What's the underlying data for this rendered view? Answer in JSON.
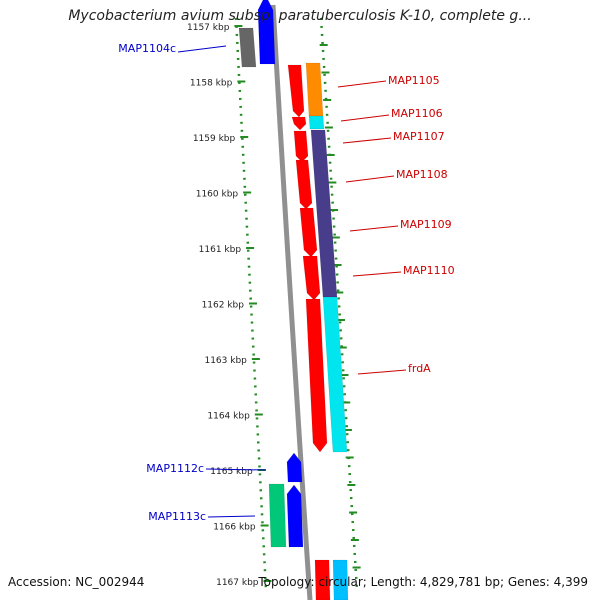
{
  "header": {
    "title": "Mycobacterium avium subsp. paratuberculosis K-10, complete g..."
  },
  "footer": {
    "accession": "Accession: NC_002944",
    "topology": "Topology: circular; Length: 4,829,781 bp; Genes: 4,399"
  },
  "ruler": {
    "ticks": [
      {
        "kbp": 1157,
        "label": "1157 kbp"
      },
      {
        "kbp": 1158,
        "label": "1158 kbp"
      },
      {
        "kbp": 1159,
        "label": "1159 kbp"
      },
      {
        "kbp": 1160,
        "label": "1160 kbp"
      },
      {
        "kbp": 1161,
        "label": "1161 kbp"
      },
      {
        "kbp": 1162,
        "label": "1162 kbp"
      },
      {
        "kbp": 1163,
        "label": "1163 kbp"
      },
      {
        "kbp": 1164,
        "label": "1164 kbp"
      },
      {
        "kbp": 1165,
        "label": "1165 kbp"
      },
      {
        "kbp": 1166,
        "label": "1166 kbp"
      },
      {
        "kbp": 1167,
        "label": "1167 kbp"
      }
    ]
  },
  "colors": {
    "forward_label": "#cc0000",
    "reverse_label": "#0000cc",
    "cds_forward": "#ff0000",
    "cds_reverse": "#0000ff",
    "dotted_track": "#228b22",
    "backbone": "#909090"
  },
  "genes": [
    {
      "name": "MAP1104c",
      "strand": "reverse"
    },
    {
      "name": "MAP1105",
      "strand": "forward"
    },
    {
      "name": "MAP1106",
      "strand": "forward"
    },
    {
      "name": "MAP1107",
      "strand": "forward"
    },
    {
      "name": "MAP1108",
      "strand": "forward"
    },
    {
      "name": "MAP1109",
      "strand": "forward"
    },
    {
      "name": "MAP1110",
      "strand": "forward"
    },
    {
      "name": "frdA",
      "strand": "forward"
    },
    {
      "name": "MAP1112c",
      "strand": "reverse"
    },
    {
      "name": "MAP1113c",
      "strand": "reverse"
    }
  ]
}
